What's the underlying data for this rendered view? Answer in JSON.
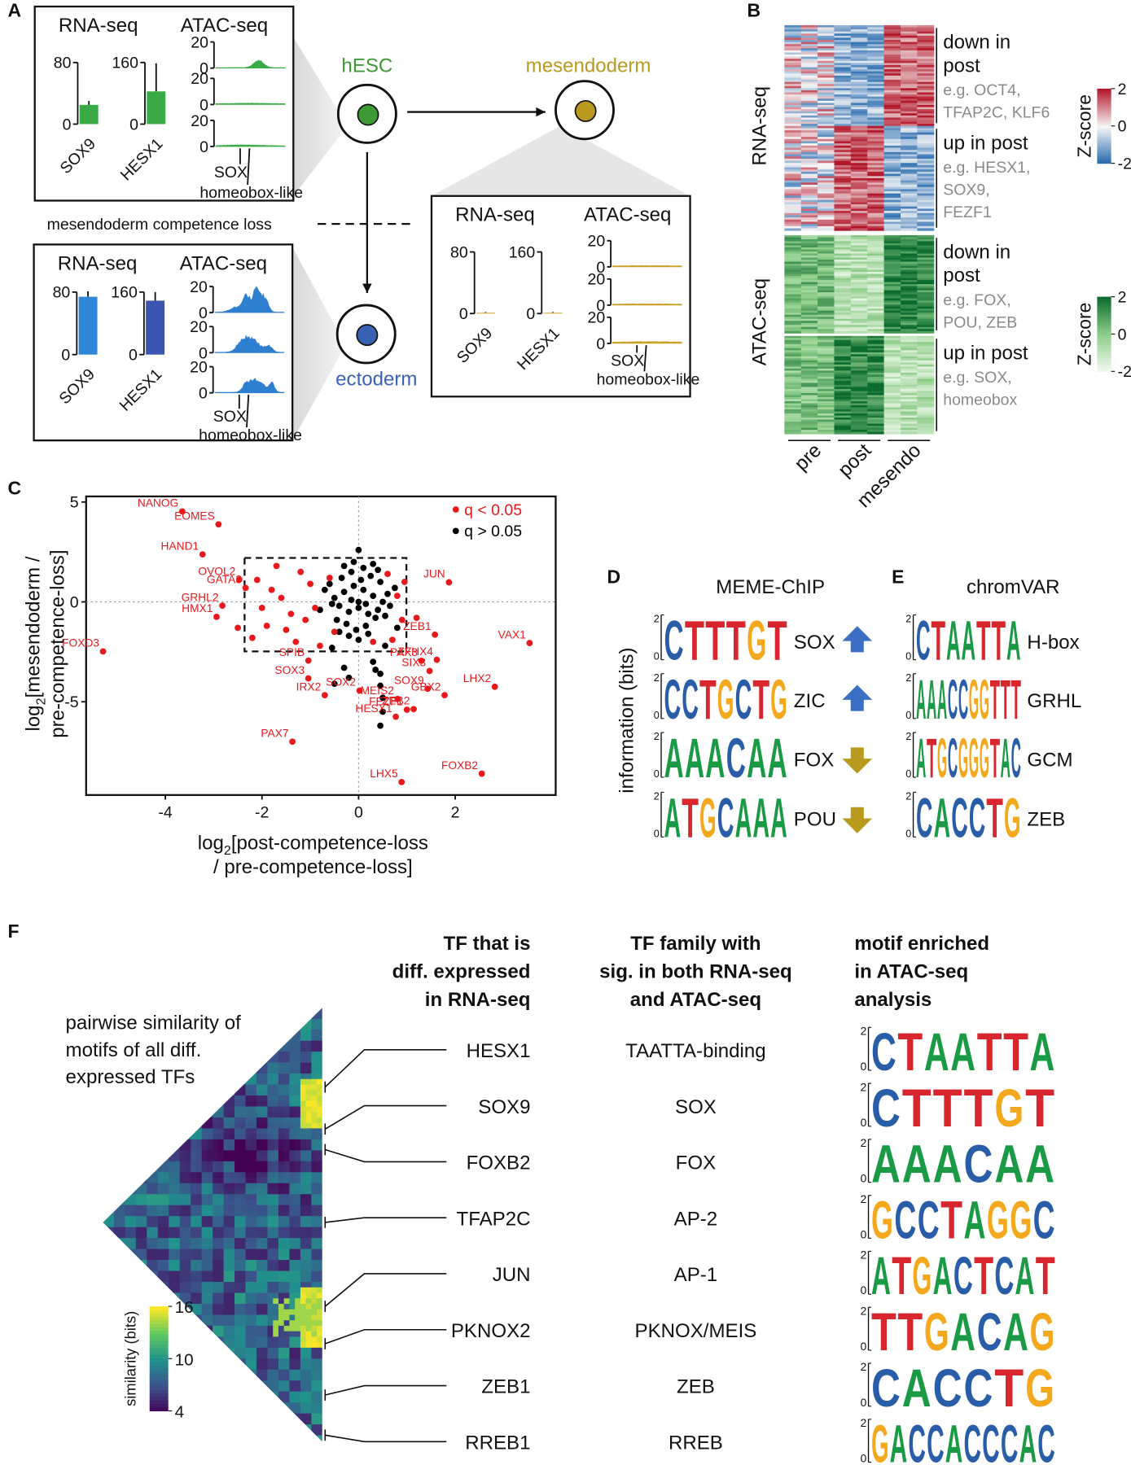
{
  "panel_letters": [
    "A",
    "B",
    "C",
    "D",
    "E",
    "F"
  ],
  "letter_colors": {
    "A": "#1a9a45",
    "C": "#2a5da8",
    "G": "#f4a81d",
    "T": "#d7262d"
  },
  "A": {
    "cells": [
      {
        "name": "hESC",
        "color": "#3d9a35"
      },
      {
        "name": "mesendoderm",
        "color": "#b99a1f"
      },
      {
        "name": "ectoderm",
        "color": "#3a62b4"
      }
    ],
    "competence_loss": "mesendoderm competence loss",
    "boxes": [
      {
        "rna_title": "RNA-seq",
        "atac_title": "ATAC-seq",
        "categories": [
          "SOX9",
          "HESX1"
        ],
        "values": [
          25,
          85
        ],
        "errors": [
          5,
          73
        ],
        "ylims": [
          [
            0,
            80
          ],
          [
            0,
            160
          ]
        ],
        "yticks": [
          [
            0,
            80
          ],
          [
            0,
            160
          ]
        ],
        "colors": [
          "#3aaa46",
          "#3aaa46"
        ],
        "atac_yticks": [
          [
            0,
            20
          ],
          [
            0,
            20
          ],
          [
            0,
            20
          ]
        ],
        "atac_color": "#3aaa46",
        "motifs": [
          "SOX",
          "homeobox-like"
        ]
      },
      {
        "rna_title": "RNA-seq",
        "atac_title": "ATAC-seq",
        "categories": [
          "SOX9",
          "HESX1"
        ],
        "values": [
          74,
          138
        ],
        "errors": [
          7,
          22
        ],
        "ylims": [
          [
            0,
            80
          ],
          [
            0,
            160
          ]
        ],
        "yticks": [
          [
            0,
            80
          ],
          [
            0,
            160
          ]
        ],
        "colors": [
          "#2f86d6",
          "#3a55b0"
        ],
        "atac_yticks": [
          [
            0,
            20
          ],
          [
            0,
            20
          ],
          [
            0,
            20
          ]
        ],
        "atac_color": "#2f7fd0",
        "motifs": [
          "SOX",
          "homeobox-like"
        ]
      },
      {
        "rna_title": "RNA-seq",
        "atac_title": "ATAC-seq",
        "categories": [
          "SOX9",
          "HESX1"
        ],
        "values": [
          1,
          2
        ],
        "errors": [
          1,
          2
        ],
        "ylims": [
          [
            0,
            80
          ],
          [
            0,
            160
          ]
        ],
        "yticks": [
          [
            0,
            80
          ],
          [
            0,
            160
          ]
        ],
        "colors": [
          "#c9a227",
          "#c9a227"
        ],
        "atac_yticks": [
          [
            0,
            20
          ],
          [
            0,
            20
          ],
          [
            0,
            20
          ]
        ],
        "atac_color": "#c9a227",
        "motifs": [
          "SOX",
          "homeobox-like"
        ]
      }
    ]
  },
  "B": {
    "row_groups": [
      "RNA-seq",
      "ATAC-seq"
    ],
    "columns": [
      "pre",
      "post",
      "mesendo"
    ],
    "clusters": [
      {
        "title": [
          "down in",
          "post"
        ],
        "examples": [
          "e.g. OCT4,",
          "TFAP2C, KLF6"
        ]
      },
      {
        "title": [
          "up in post"
        ],
        "examples": [
          "e.g. HESX1,",
          "SOX9,",
          "FEZF1"
        ]
      },
      {
        "title": [
          "down in",
          "post"
        ],
        "examples": [
          "e.g. FOX,",
          "POU, ZEB"
        ]
      },
      {
        "title": [
          "up in post"
        ],
        "examples": [
          "e.g. SOX,",
          "homeobox"
        ]
      }
    ],
    "colorbars": [
      {
        "title": "Z-score",
        "ticks": [
          -2,
          0,
          2
        ],
        "colors": [
          "#2166ac",
          "#f7f7f7",
          "#b2182b"
        ]
      },
      {
        "title": "Z-score",
        "ticks": [
          -2,
          0,
          2
        ],
        "colors": [
          "#f4faf2",
          "#8fce8a",
          "#0b6b2e"
        ]
      }
    ]
  },
  "chart_data": {
    "type": "scatter",
    "xlabel": {
      "base": "log",
      "sub": "2",
      "lines": [
        "[post-competence-loss",
        "/ pre-competence-loss]"
      ]
    },
    "ylabel": {
      "base": "log",
      "sub": "2",
      "lines": [
        "[mesendoderm /",
        "pre-competence-loss]"
      ]
    },
    "xlim": [
      -5.64,
      4.08
    ],
    "ylim": [
      -9.67,
      5.28
    ],
    "xticks": [
      -4,
      -2,
      0,
      2
    ],
    "yticks": [
      -5,
      0,
      5
    ],
    "zero_lines": true,
    "box": {
      "x": [
        -2.36,
        0.99
      ],
      "y": [
        -2.48,
        2.2
      ]
    },
    "legend": "upper right",
    "series": [
      {
        "name": "q < 0.05",
        "color": "#e8191c",
        "x": [
          -3.65,
          -2.9,
          -3.23,
          -2.47,
          -2.34,
          -2.82,
          -2.94,
          -5.29,
          1.87,
          3.54,
          1.58,
          1.62,
          1.3,
          1.47,
          1.43,
          2.82,
          1.78,
          0.81,
          1.14,
          1.0,
          0.77,
          0.02,
          -1.04,
          -1.04,
          -0.7,
          -1.37,
          0.89,
          2.55,
          -2.1,
          -1.8,
          -1.6,
          -2.0,
          -1.4,
          -1.9,
          -1.2,
          -1.0,
          -1.5,
          -2.2,
          -0.9,
          -0.6,
          -0.5,
          0.6,
          0.8,
          0.9,
          0.7,
          1.2,
          0.95,
          -1.3,
          -0.8,
          -2.5,
          -1.1,
          -1.7,
          0.3
        ],
        "y": [
          4.53,
          3.88,
          2.38,
          1.12,
          0.7,
          -0.19,
          -0.75,
          -2.48,
          0.98,
          -2.06,
          -1.64,
          -2.9,
          -2.95,
          -3.46,
          -4.35,
          -4.25,
          -4.67,
          -4.86,
          -5.37,
          -5.4,
          -5.75,
          -4.44,
          -3.83,
          -2.94,
          -4.67,
          -7.0,
          -9.02,
          -8.6,
          1.1,
          0.6,
          0.2,
          -0.3,
          -0.6,
          -1.2,
          1.5,
          0.9,
          -1.4,
          -1.8,
          -0.3,
          1.2,
          -1.5,
          1.4,
          0.3,
          -0.9,
          -1.9,
          -0.8,
          1.0,
          -2.0,
          -2.2,
          -1.3,
          -0.9,
          1.8,
          -2.0
        ],
        "labels": [
          "NANOG",
          "EOMES",
          "HAND1",
          "OVOL2",
          "GATA3",
          "GRHL2",
          "HMX1",
          "FOXD3",
          "JUN",
          "VAX1",
          "ZEB1",
          "ZFHX4",
          "PAX3",
          "SIX3",
          "SOX9",
          "LHX2",
          "GBX2",
          "MEIS2",
          "ZEB2",
          "FEZF1",
          "HESX1",
          "SOX2",
          "SOX3",
          "SPIB",
          "IRX2",
          "PAX7",
          "LHX5",
          "FOXB2",
          null,
          null,
          null,
          null,
          null,
          null,
          null,
          null,
          null,
          null,
          null,
          null,
          null,
          null,
          null,
          null,
          null,
          null,
          null,
          null,
          null,
          null,
          null,
          null,
          null
        ]
      },
      {
        "name": "q > 0.05",
        "color": "#000000",
        "x": [
          -0.5,
          -0.3,
          -0.1,
          0.1,
          0.3,
          0.5,
          -0.4,
          -0.2,
          0,
          0.2,
          0.4,
          0.6,
          -0.6,
          -0.35,
          -0.15,
          0.05,
          0.25,
          0.45,
          -0.45,
          -0.25,
          -0.05,
          0.15,
          0.35,
          0.55,
          -0.3,
          -0.1,
          0.1,
          0.3,
          -0.2,
          0,
          0.2,
          -0.55,
          0.65,
          -0.7,
          0.75,
          -0.4,
          0.4,
          0,
          -0.8,
          0.8,
          -0.15,
          0.15,
          0,
          -0.3,
          -0.5,
          0.3,
          0.35,
          0.45,
          0.5,
          -0.2,
          0.5,
          0.45,
          0.45,
          0.55,
          -0.55
        ],
        "y": [
          0.2,
          0.5,
          0.8,
          0.6,
          0.3,
          0,
          -0.2,
          -0.5,
          -0.3,
          -0.6,
          -0.4,
          0.4,
          0.9,
          1.2,
          1.5,
          1.1,
          1.3,
          1,
          -0.9,
          -1.1,
          -1.4,
          -1.2,
          -0.8,
          -0.7,
          1.8,
          2,
          1.7,
          1.9,
          -1.7,
          -1.9,
          -1.6,
          -0.1,
          -0.2,
          0.6,
          0.7,
          -1.5,
          1.6,
          2.6,
          -0.4,
          -1.3,
          0.1,
          -0.1,
          0,
          -3.3,
          -4.1,
          -3,
          -3.4,
          -3.6,
          -4.8,
          -3.8,
          -5.5,
          -6.2,
          -4.2,
          -2.2,
          -2.3
        ]
      }
    ]
  },
  "D": {
    "title": "MEME-ChIP",
    "ylabel": "information (bits)",
    "motifs": [
      {
        "name": "SOX",
        "logo": [
          "C",
          "T",
          "T",
          "T",
          "G",
          "T"
        ],
        "yticks": [
          0,
          2
        ],
        "arrow": "up",
        "arrow_color": "#3b6fc4"
      },
      {
        "name": "ZIC",
        "logo": [
          "C",
          "C",
          "T",
          "G",
          "C",
          "T",
          "G"
        ],
        "yticks": [
          0,
          2
        ],
        "arrow": "up",
        "arrow_color": "#3b6fc4"
      },
      {
        "name": "FOX",
        "logo": [
          "A",
          "A",
          "A",
          "C",
          "A",
          "A"
        ],
        "yticks": [
          0,
          2
        ],
        "arrow": "down",
        "arrow_color": "#b89a1e"
      },
      {
        "name": "POU",
        "logo": [
          "A",
          "T",
          "G",
          "C",
          "A",
          "A",
          "A"
        ],
        "yticks": [
          0,
          2
        ],
        "arrow": "down",
        "arrow_color": "#b89a1e"
      }
    ]
  },
  "E": {
    "title": "chromVAR",
    "motifs": [
      {
        "name": "H-box",
        "logo": [
          "C",
          "T",
          "A",
          "A",
          "T",
          "T",
          "A"
        ],
        "yticks": [
          0,
          2
        ]
      },
      {
        "name": "GRHL",
        "logo": [
          "A",
          "A",
          "A",
          "C",
          "C",
          "G",
          "G",
          "T",
          "T",
          "T"
        ],
        "yticks": [
          0,
          2
        ]
      },
      {
        "name": "GCM",
        "logo": [
          "A",
          "T",
          "G",
          "C",
          "G",
          "G",
          "G",
          "T",
          "A",
          "C"
        ],
        "yticks": [
          0,
          2
        ]
      },
      {
        "name": "ZEB",
        "logo": [
          "C",
          "A",
          "C",
          "C",
          "T",
          "G"
        ],
        "yticks": [
          0,
          2
        ]
      }
    ]
  },
  "F": {
    "triangle_label": [
      "pairwise similarity of",
      "motifs of all diff.",
      "expressed TFs"
    ],
    "colorbar": {
      "title": "similarity (bits)",
      "ticks": [
        4,
        10,
        16
      ]
    },
    "headers": [
      [
        "TF that is",
        "diff. expressed",
        "in RNA-seq"
      ],
      [
        "TF family with",
        "sig. in both RNA-seq",
        "and ATAC-seq"
      ],
      [
        "motif enriched",
        "in ATAC-seq",
        "analysis"
      ]
    ],
    "rows": [
      {
        "tf": "HESX1",
        "family": "TAATTA-binding",
        "logo": [
          "C",
          "T",
          "A",
          "A",
          "T",
          "T",
          "A"
        ],
        "yticks": [
          0,
          2
        ]
      },
      {
        "tf": "SOX9",
        "family": "SOX",
        "logo": [
          "C",
          "T",
          "T",
          "T",
          "G",
          "T"
        ],
        "yticks": [
          0,
          2
        ]
      },
      {
        "tf": "FOXB2",
        "family": "FOX",
        "logo": [
          "A",
          "A",
          "A",
          "C",
          "A",
          "A"
        ],
        "yticks": [
          0,
          2
        ]
      },
      {
        "tf": "TFAP2C",
        "family": "AP-2",
        "logo": [
          "G",
          "C",
          "C",
          "T",
          "A",
          "G",
          "G",
          "C"
        ],
        "yticks": [
          0,
          2
        ]
      },
      {
        "tf": "JUN",
        "family": "AP-1",
        "logo": [
          "A",
          "T",
          "G",
          "A",
          "C",
          "T",
          "C",
          "A",
          "T"
        ],
        "yticks": [
          0,
          2
        ]
      },
      {
        "tf": "PKNOX2",
        "family": "PKNOX/MEIS",
        "logo": [
          "T",
          "T",
          "G",
          "A",
          "C",
          "A",
          "G"
        ],
        "yticks": [
          0,
          2
        ]
      },
      {
        "tf": "ZEB1",
        "family": "ZEB",
        "logo": [
          "C",
          "A",
          "C",
          "C",
          "T",
          "G"
        ],
        "yticks": [
          0,
          2
        ]
      },
      {
        "tf": "RREB1",
        "family": "RREB",
        "logo": [
          "G",
          "A",
          "C",
          "C",
          "A",
          "C",
          "C",
          "C",
          "A",
          "C"
        ],
        "yticks": [
          0,
          2
        ]
      }
    ]
  }
}
